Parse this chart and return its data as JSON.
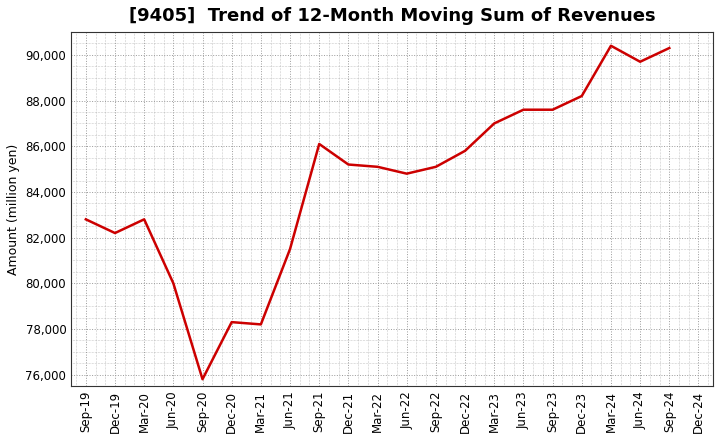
{
  "title": "[9405]  Trend of 12-Month Moving Sum of Revenues",
  "ylabel": "Amount (million yen)",
  "xlabel": "",
  "background_color": "#ffffff",
  "plot_bg_color": "#ffffff",
  "grid_color": "#999999",
  "line_color": "#cc0000",
  "line_width": 1.8,
  "x_labels": [
    "Sep-19",
    "Dec-19",
    "Mar-20",
    "Jun-20",
    "Sep-20",
    "Dec-20",
    "Mar-21",
    "Jun-21",
    "Sep-21",
    "Dec-21",
    "Mar-22",
    "Jun-22",
    "Sep-22",
    "Dec-22",
    "Mar-23",
    "Jun-23",
    "Sep-23",
    "Dec-23",
    "Mar-24",
    "Jun-24",
    "Sep-24",
    "Dec-24"
  ],
  "y_values": [
    82800,
    82200,
    82800,
    80000,
    75800,
    78300,
    78200,
    81500,
    86100,
    85200,
    85100,
    84800,
    85100,
    85800,
    87000,
    87600,
    87600,
    88200,
    90400,
    89700,
    90300,
    null
  ],
  "ylim": [
    75500,
    91000
  ],
  "yticks": [
    76000,
    78000,
    80000,
    82000,
    84000,
    86000,
    88000,
    90000
  ],
  "title_fontsize": 13,
  "axis_fontsize": 9,
  "tick_fontsize": 8.5
}
